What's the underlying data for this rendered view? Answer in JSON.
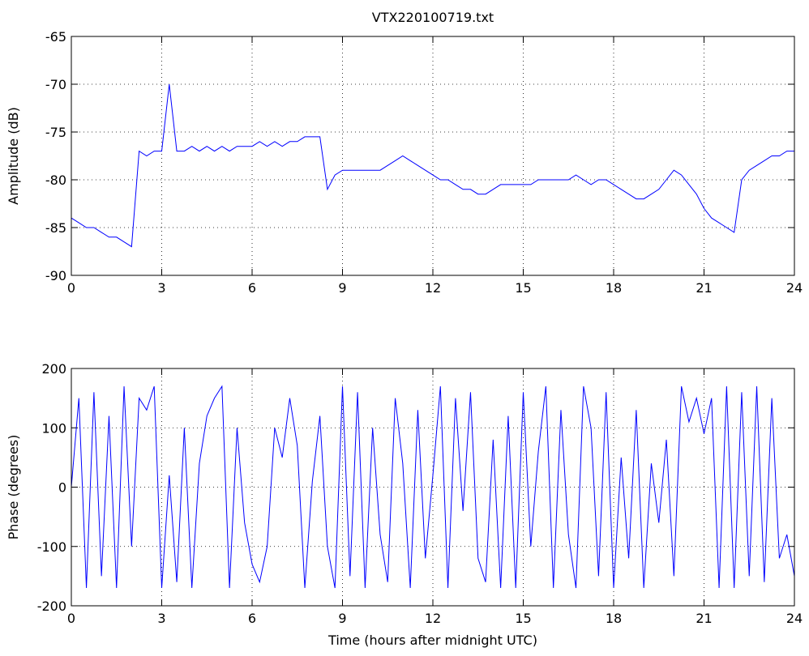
{
  "chart_data": [
    {
      "type": "line",
      "title": "VTX220100719.txt",
      "ylabel": "Amplitude (dB)",
      "color": "#0000ff",
      "grid": true,
      "x": [
        0,
        0.25,
        0.5,
        0.75,
        1,
        1.25,
        1.5,
        1.75,
        2,
        2.25,
        2.5,
        2.75,
        3,
        3.25,
        3.5,
        3.75,
        4,
        4.25,
        4.5,
        4.75,
        5,
        5.25,
        5.5,
        5.75,
        6,
        6.25,
        6.5,
        6.75,
        7,
        7.25,
        7.5,
        7.75,
        8,
        8.25,
        8.5,
        8.75,
        9,
        9.25,
        9.5,
        9.75,
        10,
        10.25,
        10.5,
        10.75,
        11,
        11.25,
        11.5,
        11.75,
        12,
        12.25,
        12.5,
        12.75,
        13,
        13.25,
        13.5,
        13.75,
        14,
        14.25,
        14.5,
        14.75,
        15,
        15.25,
        15.5,
        15.75,
        16,
        16.25,
        16.5,
        16.75,
        17,
        17.25,
        17.5,
        17.75,
        18,
        18.25,
        18.5,
        18.75,
        19,
        19.25,
        19.5,
        19.75,
        20,
        20.25,
        20.5,
        20.75,
        21,
        21.25,
        21.5,
        21.75,
        22,
        22.25,
        22.5,
        22.75,
        23,
        23.25,
        23.5,
        23.75,
        24
      ],
      "values": [
        -84,
        -84.5,
        -85,
        -85,
        -85.5,
        -86,
        -86,
        -86.5,
        -87,
        -77,
        -77.5,
        -77,
        -77,
        -70,
        -77,
        -77,
        -76.5,
        -77,
        -76.5,
        -77,
        -76.5,
        -77,
        -76.5,
        -76.5,
        -76.5,
        -76,
        -76.5,
        -76,
        -76.5,
        -76,
        -76,
        -75.5,
        -75.5,
        -75.5,
        -81,
        -79.5,
        -79,
        -79,
        -79,
        -79,
        -79,
        -79,
        -78.5,
        -78,
        -77.5,
        -78,
        -78.5,
        -79,
        -79.5,
        -80,
        -80,
        -80.5,
        -81,
        -81,
        -81.5,
        -81.5,
        -81,
        -80.5,
        -80.5,
        -80.5,
        -80.5,
        -80.5,
        -80,
        -80,
        -80,
        -80,
        -80,
        -79.5,
        -80,
        -80.5,
        -80,
        -80,
        -80.5,
        -81,
        -81.5,
        -82,
        -82,
        -81.5,
        -81,
        -80,
        -79,
        -79.5,
        -80.5,
        -81.5,
        -83,
        -84,
        -84.5,
        -85,
        -85.5,
        -80,
        -79,
        -78.5,
        -78,
        -77.5,
        -77.5,
        -77,
        -77
      ],
      "xlim": [
        0,
        24
      ],
      "xticks": [
        0,
        3,
        6,
        9,
        12,
        15,
        18,
        21,
        24
      ],
      "ylim": [
        -90,
        -65
      ],
      "yticks": [
        -90,
        -85,
        -80,
        -75,
        -70,
        -65
      ]
    },
    {
      "type": "line",
      "xlabel": "Time (hours after midnight UTC)",
      "ylabel": "Phase (degrees)",
      "color": "#0000ff",
      "grid": true,
      "x": [
        0,
        0.25,
        0.5,
        0.75,
        1,
        1.25,
        1.5,
        1.75,
        2,
        2.25,
        2.5,
        2.75,
        3,
        3.25,
        3.5,
        3.75,
        4,
        4.25,
        4.5,
        4.75,
        5,
        5.25,
        5.5,
        5.75,
        6,
        6.25,
        6.5,
        6.75,
        7,
        7.25,
        7.5,
        7.75,
        8,
        8.25,
        8.5,
        8.75,
        9,
        9.25,
        9.5,
        9.75,
        10,
        10.25,
        10.5,
        10.75,
        11,
        11.25,
        11.5,
        11.75,
        12,
        12.25,
        12.5,
        12.75,
        13,
        13.25,
        13.5,
        13.75,
        14,
        14.25,
        14.5,
        14.75,
        15,
        15.25,
        15.5,
        15.75,
        16,
        16.25,
        16.5,
        16.75,
        17,
        17.25,
        17.5,
        17.75,
        18,
        18.25,
        18.5,
        18.75,
        19,
        19.25,
        19.5,
        19.75,
        20,
        20.25,
        20.5,
        20.75,
        21,
        21.25,
        21.5,
        21.75,
        22,
        22.25,
        22.5,
        22.75,
        23,
        23.25,
        23.5,
        23.75,
        24
      ],
      "values": [
        0,
        150,
        -170,
        160,
        -150,
        120,
        -170,
        170,
        -100,
        150,
        130,
        170,
        -170,
        20,
        -160,
        100,
        -170,
        40,
        120,
        150,
        170,
        -170,
        100,
        -60,
        -130,
        -160,
        -100,
        100,
        50,
        150,
        70,
        -170,
        10,
        120,
        -100,
        -170,
        170,
        -150,
        160,
        -170,
        100,
        -80,
        -160,
        150,
        40,
        -170,
        130,
        -120,
        20,
        170,
        -170,
        150,
        -40,
        160,
        -120,
        -160,
        80,
        -170,
        120,
        -170,
        160,
        -100,
        60,
        170,
        -170,
        130,
        -80,
        -170,
        170,
        100,
        -150,
        160,
        -170,
        50,
        -120,
        130,
        -170,
        40,
        -60,
        80,
        -150,
        170,
        110,
        150,
        90,
        150,
        -170,
        170,
        -170,
        160,
        -150,
        170,
        -160,
        150,
        -120,
        -80,
        -150
      ],
      "xlim": [
        0,
        24
      ],
      "xticks": [
        0,
        3,
        6,
        9,
        12,
        15,
        18,
        21,
        24
      ],
      "ylim": [
        -200,
        200
      ],
      "yticks": [
        -200,
        -100,
        0,
        100,
        200
      ]
    }
  ]
}
